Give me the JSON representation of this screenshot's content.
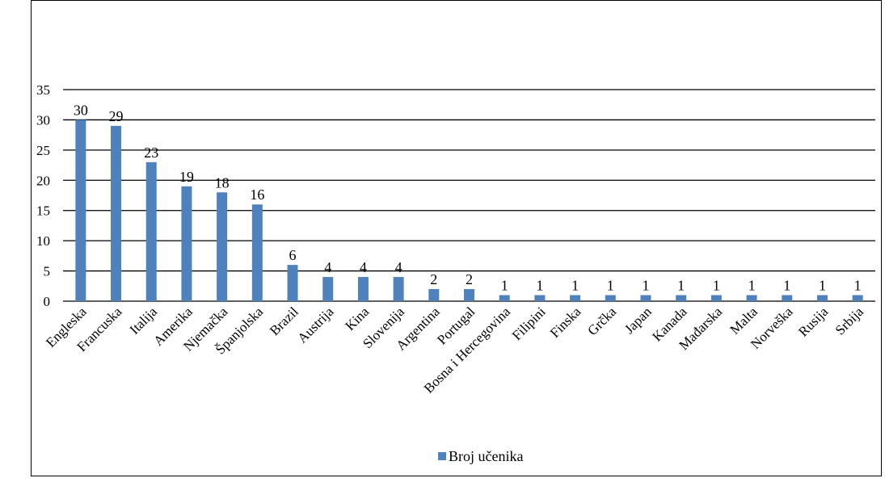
{
  "chart_data": {
    "type": "bar",
    "categories": [
      "Engleska",
      "Francuska",
      "Italija",
      "Amerika",
      "Njemačka",
      "Španjolska",
      "Brazil",
      "Austrija",
      "Kina",
      "Slovenija",
      "Argentina",
      "Portugal",
      "Bosna i Hercegovina",
      "Filipini",
      "Finska",
      "Grčka",
      "Japan",
      "Kanada",
      "Mađarska",
      "Malta",
      "Norveška",
      "Rusija",
      "Srbija"
    ],
    "series": [
      {
        "name": "Broj učenika",
        "values": [
          30,
          29,
          23,
          19,
          18,
          16,
          6,
          4,
          4,
          4,
          2,
          2,
          1,
          1,
          1,
          1,
          1,
          1,
          1,
          1,
          1,
          1,
          1
        ]
      }
    ],
    "yticks": [
      "0",
      "5",
      "10",
      "15",
      "20",
      "25",
      "30",
      "35"
    ],
    "ylim": [
      0,
      35
    ],
    "grid": true,
    "legend_position": "bottom",
    "colors": {
      "bar": "#4f81bd",
      "grid": "#000000"
    }
  }
}
